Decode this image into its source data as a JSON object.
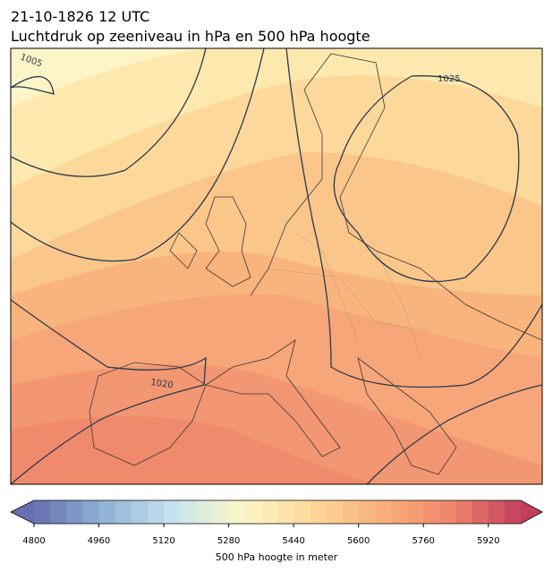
{
  "header": {
    "title": "21-10-1826 12 UTC",
    "subtitle": "Luchtdruk op zeeniveau in hPa en 500 hPa hoogte"
  },
  "isobars": [
    {
      "label": 1005
    },
    {
      "label": 1025
    },
    {
      "label": 1020
    }
  ],
  "colorbar": {
    "label": "500 hPa hoogte in meter",
    "range": [
      4800,
      6000
    ],
    "ticks": [
      4800,
      4960,
      5120,
      5280,
      5440,
      5600,
      5760,
      5920
    ],
    "colors": [
      "#6670b0",
      "#8fb3d6",
      "#c6e4ee",
      "#fdf7c6",
      "#fdd79a",
      "#f8b07c",
      "#ef8669",
      "#c23f5e"
    ]
  }
}
